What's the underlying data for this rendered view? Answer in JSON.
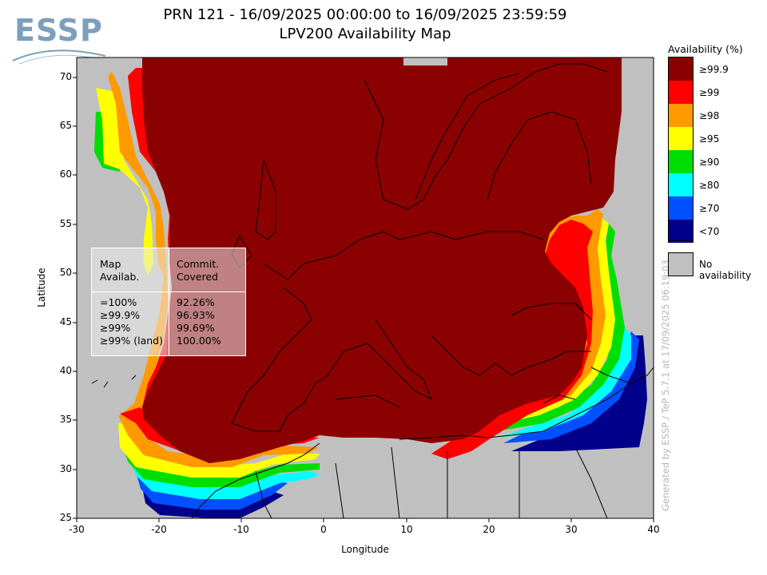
{
  "header": {
    "logo_text": "ESSP",
    "title_line1": "PRN 121 - 16/09/2025 00:00:00 to 16/09/2025 23:59:59",
    "title_line2": "LPV200 Availability Map"
  },
  "axes": {
    "xlabel": "Longitude",
    "ylabel": "Latitude",
    "xlim": [
      -30,
      40
    ],
    "ylim": [
      25,
      72
    ],
    "x_ticks": [
      "-30",
      "-20",
      "-10",
      "0",
      "10",
      "20",
      "30",
      "40"
    ],
    "y_ticks": [
      "25",
      "30",
      "35",
      "40",
      "45",
      "50",
      "55",
      "60",
      "65",
      "70"
    ]
  },
  "legend": {
    "title": "Availability (%)",
    "items": [
      {
        "label": "≥99.9",
        "color": "#8b0000"
      },
      {
        "label": "≥99",
        "color": "#ff0000"
      },
      {
        "label": "≥98",
        "color": "#ff9900"
      },
      {
        "label": "≥95",
        "color": "#ffff00"
      },
      {
        "label": "≥90",
        "color": "#00dd00"
      },
      {
        "label": "≥80",
        "color": "#00ffff"
      },
      {
        "label": "≥70",
        "color": "#0050ff"
      },
      {
        "label": "<70",
        "color": "#00008b"
      }
    ],
    "no_availability": {
      "label": "No availability",
      "color": "#c0c0c0"
    }
  },
  "stats": {
    "header_left": [
      "Map",
      "Availab."
    ],
    "header_right": [
      "Commit.",
      "Covered"
    ],
    "rows": [
      {
        "level": "=100%",
        "value": "92.26%"
      },
      {
        "level": "≥99.9%",
        "value": "96.93%"
      },
      {
        "level": "≥99%",
        "value": "99.69%"
      },
      {
        "level": "≥99% (land)",
        "value": "100.00%"
      }
    ]
  },
  "credit": "Generated by ESSP / TeP 5.7.1 at 17/09/2025 06:19:03"
}
